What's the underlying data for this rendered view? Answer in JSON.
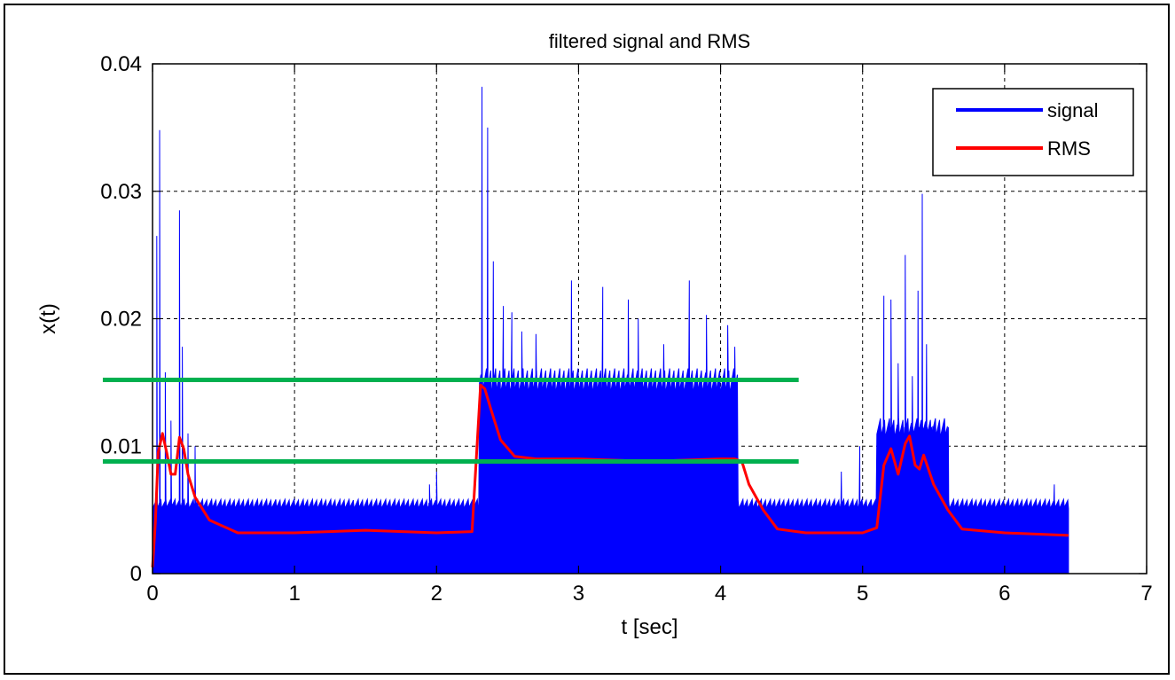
{
  "chart_data": {
    "type": "area",
    "title": "filtered signal and RMS",
    "xlabel": "t [sec]",
    "ylabel": "x(t)",
    "xlim": [
      0,
      7
    ],
    "ylim": [
      0,
      0.04
    ],
    "xticks": [
      0,
      1,
      2,
      3,
      4,
      5,
      6,
      7
    ],
    "xtick_labels": [
      "0",
      "1",
      "2",
      "3",
      "4",
      "5",
      "6",
      "7"
    ],
    "yticks": [
      0,
      0.01,
      0.02,
      0.03,
      0.04
    ],
    "ytick_labels": [
      "0",
      "0.01",
      "0.02",
      "0.03",
      "0.04"
    ],
    "grid": true,
    "grid_style": "dashed",
    "legend_position": "top-right",
    "series": [
      {
        "name": "signal",
        "color": "#0000ff",
        "style": "filled-envelope",
        "x_range": [
          0,
          6.45
        ],
        "baseline": 0.0055,
        "segments": [
          {
            "x": [
              0.3,
              2.28
            ],
            "level": 0.0055
          },
          {
            "x": [
              2.3,
              4.12
            ],
            "level": 0.0152
          },
          {
            "x": [
              4.15,
              5.1
            ],
            "level": 0.0055
          },
          {
            "x": [
              5.1,
              5.6
            ],
            "level": 0.0115
          },
          {
            "x": [
              5.6,
              6.45
            ],
            "level": 0.0055
          }
        ],
        "peaks": [
          {
            "t": 0.03,
            "v": 0.0265
          },
          {
            "t": 0.05,
            "v": 0.0348
          },
          {
            "t": 0.09,
            "v": 0.0158
          },
          {
            "t": 0.13,
            "v": 0.012
          },
          {
            "t": 0.19,
            "v": 0.0285
          },
          {
            "t": 0.21,
            "v": 0.0178
          },
          {
            "t": 0.25,
            "v": 0.011
          },
          {
            "t": 0.3,
            "v": 0.01
          },
          {
            "t": 1.95,
            "v": 0.007
          },
          {
            "t": 2.0,
            "v": 0.008
          },
          {
            "t": 2.32,
            "v": 0.0382
          },
          {
            "t": 2.36,
            "v": 0.035
          },
          {
            "t": 2.4,
            "v": 0.0245
          },
          {
            "t": 2.47,
            "v": 0.021
          },
          {
            "t": 2.53,
            "v": 0.0205
          },
          {
            "t": 2.6,
            "v": 0.019
          },
          {
            "t": 2.7,
            "v": 0.0188
          },
          {
            "t": 2.95,
            "v": 0.023
          },
          {
            "t": 3.17,
            "v": 0.0225
          },
          {
            "t": 3.35,
            "v": 0.0215
          },
          {
            "t": 3.42,
            "v": 0.02
          },
          {
            "t": 3.6,
            "v": 0.018
          },
          {
            "t": 3.78,
            "v": 0.023
          },
          {
            "t": 3.9,
            "v": 0.0203
          },
          {
            "t": 4.05,
            "v": 0.0195
          },
          {
            "t": 4.1,
            "v": 0.0178
          },
          {
            "t": 4.85,
            "v": 0.008
          },
          {
            "t": 4.98,
            "v": 0.01
          },
          {
            "t": 5.15,
            "v": 0.0218
          },
          {
            "t": 5.2,
            "v": 0.0215
          },
          {
            "t": 5.25,
            "v": 0.0165
          },
          {
            "t": 5.3,
            "v": 0.025
          },
          {
            "t": 5.35,
            "v": 0.0155
          },
          {
            "t": 5.39,
            "v": 0.0222
          },
          {
            "t": 5.42,
            "v": 0.0298
          },
          {
            "t": 5.45,
            "v": 0.018
          },
          {
            "t": 5.49,
            "v": 0.0108
          },
          {
            "t": 5.6,
            "v": 0.0075
          },
          {
            "t": 6.35,
            "v": 0.007
          }
        ]
      },
      {
        "name": "RMS",
        "color": "#ff0000",
        "style": "line",
        "x": [
          0,
          0.02,
          0.04,
          0.07,
          0.1,
          0.13,
          0.16,
          0.19,
          0.22,
          0.25,
          0.3,
          0.4,
          0.6,
          1.0,
          1.5,
          2.0,
          2.25,
          2.28,
          2.31,
          2.34,
          2.38,
          2.45,
          2.55,
          2.7,
          3.0,
          3.5,
          4.0,
          4.1,
          4.15,
          4.2,
          4.3,
          4.4,
          4.6,
          5.0,
          5.1,
          5.15,
          5.2,
          5.25,
          5.3,
          5.33,
          5.37,
          5.4,
          5.43,
          5.5,
          5.6,
          5.7,
          6.0,
          6.45
        ],
        "y": [
          0.0005,
          0.004,
          0.0095,
          0.011,
          0.0095,
          0.0078,
          0.0078,
          0.0107,
          0.0098,
          0.0078,
          0.006,
          0.0042,
          0.0032,
          0.0032,
          0.0034,
          0.0032,
          0.0033,
          0.009,
          0.0148,
          0.0145,
          0.013,
          0.0105,
          0.0092,
          0.009,
          0.009,
          0.0088,
          0.009,
          0.009,
          0.0088,
          0.007,
          0.005,
          0.0035,
          0.0032,
          0.0032,
          0.0036,
          0.0085,
          0.0098,
          0.0078,
          0.0102,
          0.0108,
          0.0085,
          0.0082,
          0.0093,
          0.007,
          0.005,
          0.0035,
          0.0032,
          0.003
        ]
      }
    ],
    "reference_lines": [
      {
        "color": "#00b04f",
        "x": [
          -0.35,
          4.55
        ],
        "y": 0.0152
      },
      {
        "color": "#00b04f",
        "x": [
          -0.35,
          4.55
        ],
        "y": 0.0088
      }
    ]
  }
}
